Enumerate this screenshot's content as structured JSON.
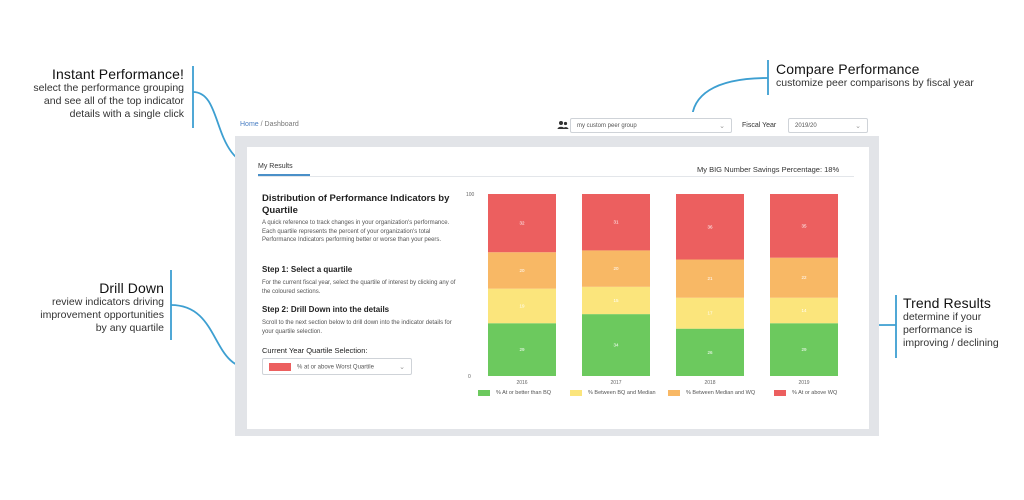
{
  "callouts": {
    "instant": {
      "title": "Instant Performance!",
      "desc": [
        "select the performance grouping",
        "and see all of the top indicator",
        "details with a single click"
      ]
    },
    "compare": {
      "title": "Compare Performance",
      "desc": [
        "customize peer comparisons by fiscal year"
      ]
    },
    "drill": {
      "title": "Drill Down",
      "desc": [
        "review indicators driving",
        "improvement opportunities",
        "by any quartile"
      ]
    },
    "trend": {
      "title": "Trend Results",
      "desc": [
        "determine if your",
        "performance is",
        "improving / declining"
      ]
    }
  },
  "breadcrumb": {
    "home": "Home",
    "separator": "/",
    "current": "Dashboard"
  },
  "header": {
    "peer_select_value": "my custom peer group",
    "fiscal_year_label": "Fiscal Year",
    "fiscal_year_value": "2019/20"
  },
  "tabs": {
    "my_results": "My Results"
  },
  "big_number": "My BIG Number Savings Percentage: 18%",
  "panel": {
    "title": "Distribution of Performance Indicators by Quartile",
    "intro": "A quick reference to track changes in your organization's performance. Each quartile represents the percent of your organization's total Performance Indicators performing better or worse than your peers.",
    "step1_title": "Step 1: Select a quartile",
    "step1_text": "For the current fiscal year, select the quartile of interest by clicking any of the coloured sections.",
    "step2_title": "Step 2: Drill Down into the details",
    "step2_text": "Scroll to the next section below to drill down into the indicator details for your quartile selection.",
    "cq_label": "Current Year Quartile Selection:",
    "cq_value": "% at or above Worst Quartile"
  },
  "colors": {
    "green": "#6cc95e",
    "yellow": "#fbe57c",
    "orange": "#f8b865",
    "red": "#ec5f5f",
    "accent": "#4a90c8"
  },
  "chart_data": {
    "type": "bar",
    "stacked": true,
    "categories": [
      "2016",
      "2017",
      "2018",
      "2019"
    ],
    "series": [
      {
        "name": "% At or better than BQ",
        "color": "#6cc95e",
        "values": [
          29,
          34,
          26,
          29
        ]
      },
      {
        "name": "% Between BQ and Median",
        "color": "#fbe57c",
        "values": [
          19,
          15,
          17,
          14
        ]
      },
      {
        "name": "% Between Median and WQ",
        "color": "#f8b865",
        "values": [
          20,
          20,
          21,
          22
        ]
      },
      {
        "name": "% At or above WQ",
        "color": "#ec5f5f",
        "values": [
          32,
          31,
          36,
          35
        ]
      }
    ],
    "ylim": [
      0,
      100
    ],
    "yticks": [
      "0",
      "100"
    ]
  }
}
